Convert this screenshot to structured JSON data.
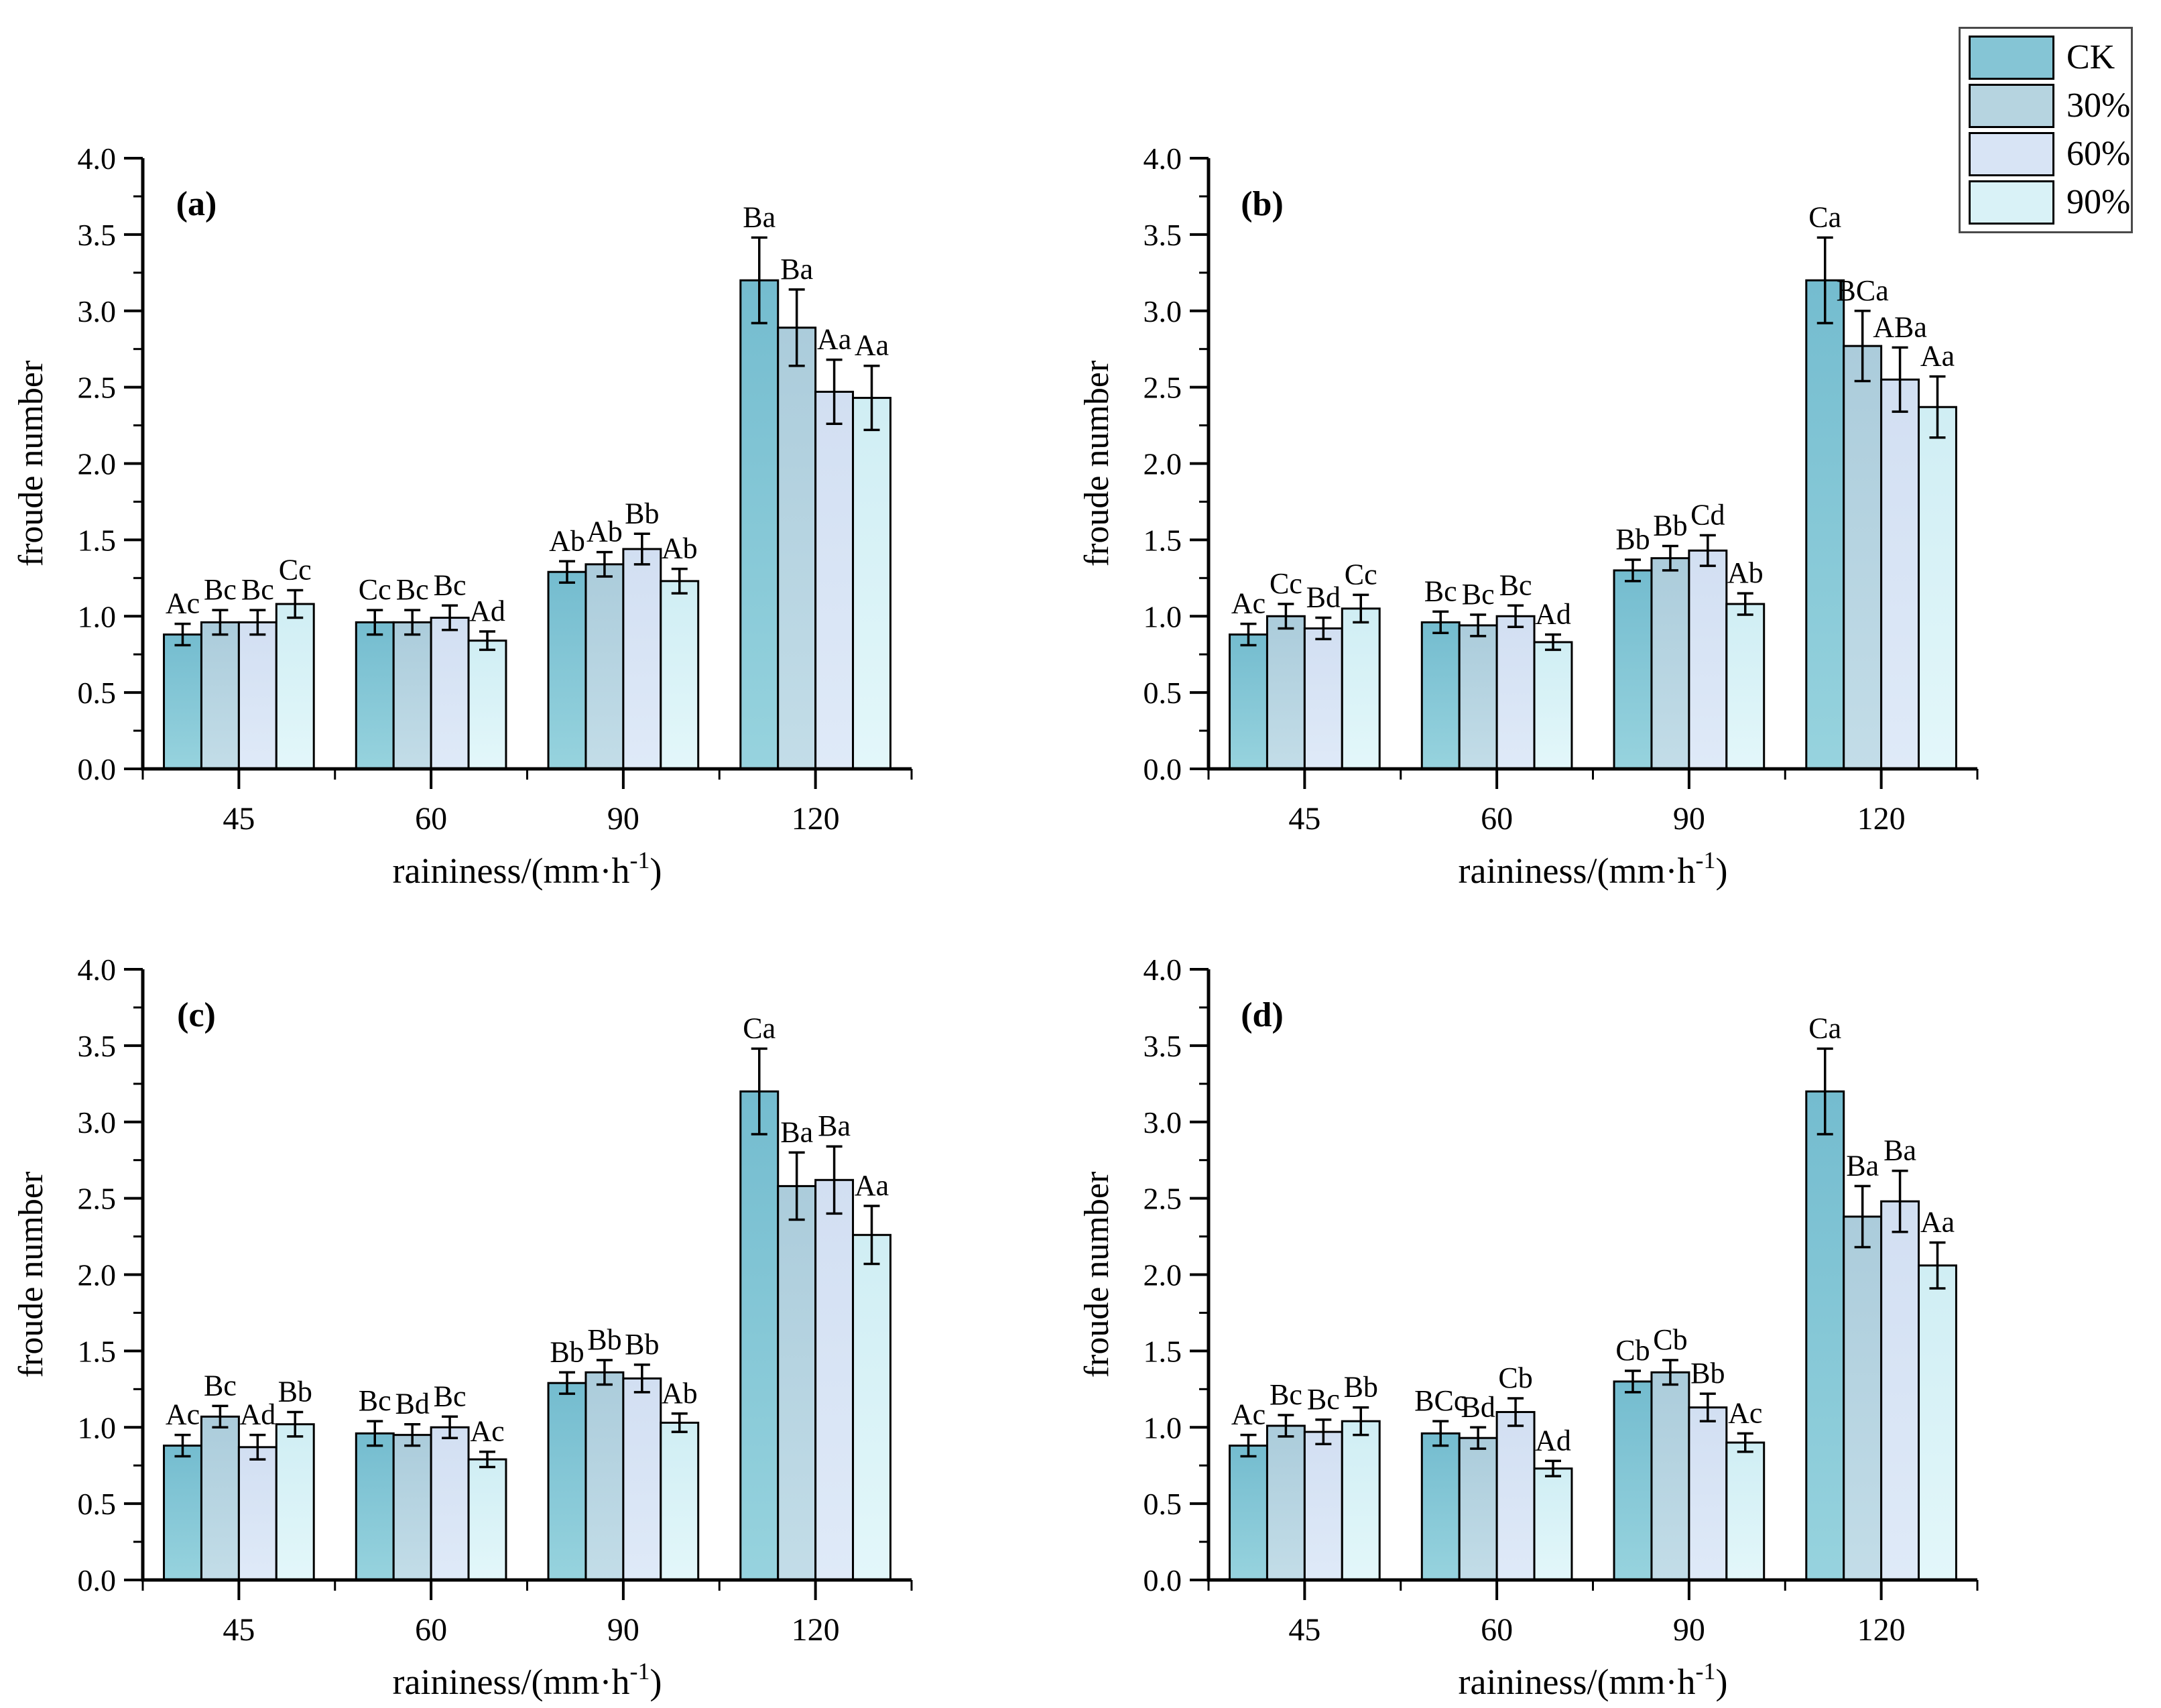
{
  "figure": {
    "background": "#ffffff"
  },
  "legend": {
    "items": [
      {
        "label": "CK",
        "color": "#85c5d5"
      },
      {
        "label": "30%",
        "color": "#b6d4e0"
      },
      {
        "label": "60%",
        "color": "#d8e4f5"
      },
      {
        "label": "90%",
        "color": "#d9f2f7"
      }
    ]
  },
  "colors": {
    "series_gradients": [
      {
        "name": "CK",
        "top": "#74bccf",
        "bottom": "#97d3de"
      },
      {
        "name": "30%",
        "top": "#abccdb",
        "bottom": "#c3dde8"
      },
      {
        "name": "60%",
        "top": "#d2dff2",
        "bottom": "#dfeaf8"
      },
      {
        "name": "90%",
        "top": "#d0eef4",
        "bottom": "#e3f7fa"
      }
    ],
    "bar_stroke": "#000000",
    "axis": "#000000",
    "text": "#000000"
  },
  "axes": {
    "ylabel": "froude number",
    "xlabel_full": "raininess/(mm·h⁻¹)",
    "xlabel_pre": "raininess/(mm·h",
    "xlabel_sup": "-1",
    "xlabel_post": ")",
    "ylim": [
      0,
      4
    ],
    "ytick_major": 0.5,
    "ytick_minor": 0.25,
    "xticks": [
      "45",
      "60",
      "90",
      "120"
    ]
  },
  "chart_data": [
    {
      "type": "bar",
      "panel_label": "(a)",
      "categories": [
        "45",
        "60",
        "90",
        "120"
      ],
      "series": [
        {
          "name": "CK",
          "values": [
            0.88,
            0.96,
            1.29,
            3.2
          ],
          "errors": [
            0.07,
            0.08,
            0.07,
            0.28
          ],
          "letters": [
            "Ac",
            "Cc",
            "Ab",
            "Ba"
          ]
        },
        {
          "name": "30%",
          "values": [
            0.96,
            0.96,
            1.34,
            2.89
          ],
          "errors": [
            0.08,
            0.08,
            0.08,
            0.25
          ],
          "letters": [
            "Bc",
            "Bc",
            "Ab",
            "Ba"
          ]
        },
        {
          "name": "60%",
          "values": [
            0.96,
            0.99,
            1.44,
            2.47
          ],
          "errors": [
            0.08,
            0.08,
            0.1,
            0.21
          ],
          "letters": [
            "Bc",
            "Bc",
            "Bb",
            "Aa"
          ]
        },
        {
          "name": "90%",
          "values": [
            1.08,
            0.84,
            1.23,
            2.43
          ],
          "errors": [
            0.09,
            0.06,
            0.08,
            0.21
          ],
          "letters": [
            "Cc",
            "Ad",
            "Ab",
            "Aa"
          ]
        }
      ],
      "xlabel": "raininess/(mm·h⁻¹)",
      "ylabel": "froude number",
      "ylim": [
        0,
        4
      ]
    },
    {
      "type": "bar",
      "panel_label": "(b)",
      "categories": [
        "45",
        "60",
        "90",
        "120"
      ],
      "series": [
        {
          "name": "CK",
          "values": [
            0.88,
            0.96,
            1.3,
            3.2
          ],
          "errors": [
            0.07,
            0.07,
            0.07,
            0.28
          ],
          "letters": [
            "Ac",
            "Bc",
            "Bb",
            "Ca"
          ]
        },
        {
          "name": "30%",
          "values": [
            1.0,
            0.94,
            1.38,
            2.77
          ],
          "errors": [
            0.08,
            0.07,
            0.08,
            0.23
          ],
          "letters": [
            "Cc",
            "Bc",
            "Bb",
            "BCa"
          ]
        },
        {
          "name": "60%",
          "values": [
            0.92,
            1.0,
            1.43,
            2.55
          ],
          "errors": [
            0.07,
            0.07,
            0.1,
            0.21
          ],
          "letters": [
            "Bd",
            "Bc",
            "Cd",
            "ABa"
          ]
        },
        {
          "name": "90%",
          "values": [
            1.05,
            0.83,
            1.08,
            2.37
          ],
          "errors": [
            0.09,
            0.05,
            0.07,
            0.2
          ],
          "letters": [
            "Cc",
            "Ad",
            "Ab",
            "Aa"
          ]
        }
      ],
      "xlabel": "raininess/(mm·h⁻¹)",
      "ylabel": "froude number",
      "ylim": [
        0,
        4
      ]
    },
    {
      "type": "bar",
      "panel_label": "(c)",
      "categories": [
        "45",
        "60",
        "90",
        "120"
      ],
      "series": [
        {
          "name": "CK",
          "values": [
            0.88,
            0.96,
            1.29,
            3.2
          ],
          "errors": [
            0.07,
            0.08,
            0.07,
            0.28
          ],
          "letters": [
            "Ac",
            "Bc",
            "Bb",
            "Ca"
          ]
        },
        {
          "name": "30%",
          "values": [
            1.07,
            0.95,
            1.36,
            2.58
          ],
          "errors": [
            0.07,
            0.07,
            0.08,
            0.22
          ],
          "letters": [
            "Bc",
            "Bd",
            "Bb",
            "Ba"
          ]
        },
        {
          "name": "60%",
          "values": [
            0.87,
            1.0,
            1.32,
            2.62
          ],
          "errors": [
            0.08,
            0.07,
            0.09,
            0.22
          ],
          "letters": [
            "Ad",
            "Bc",
            "Bb",
            "Ba"
          ]
        },
        {
          "name": "90%",
          "values": [
            1.02,
            0.79,
            1.03,
            2.26
          ],
          "errors": [
            0.08,
            0.05,
            0.06,
            0.19
          ],
          "letters": [
            "Bb",
            "Ac",
            "Ab",
            "Aa"
          ]
        }
      ],
      "xlabel": "raininess/(mm·h⁻¹)",
      "ylabel": "froude number",
      "ylim": [
        0,
        4
      ]
    },
    {
      "type": "bar",
      "panel_label": "(d)",
      "categories": [
        "45",
        "60",
        "90",
        "120"
      ],
      "series": [
        {
          "name": "CK",
          "values": [
            0.88,
            0.96,
            1.3,
            3.2
          ],
          "errors": [
            0.07,
            0.08,
            0.07,
            0.28
          ],
          "letters": [
            "Ac",
            "BCc",
            "Cb",
            "Ca"
          ]
        },
        {
          "name": "30%",
          "values": [
            1.01,
            0.93,
            1.36,
            2.38
          ],
          "errors": [
            0.07,
            0.07,
            0.08,
            0.2
          ],
          "letters": [
            "Bc",
            "Bd",
            "Cb",
            "Ba"
          ]
        },
        {
          "name": "60%",
          "values": [
            0.97,
            1.1,
            1.13,
            2.48
          ],
          "errors": [
            0.08,
            0.09,
            0.09,
            0.2
          ],
          "letters": [
            "Bc",
            "Cb",
            "Bb",
            "Ba"
          ]
        },
        {
          "name": "90%",
          "values": [
            1.04,
            0.73,
            0.9,
            2.06
          ],
          "errors": [
            0.09,
            0.05,
            0.06,
            0.15
          ],
          "letters": [
            "Bb",
            "Ad",
            "Ac",
            "Aa"
          ]
        }
      ],
      "xlabel": "raininess/(mm·h⁻¹)",
      "ylabel": "froude number",
      "ylim": [
        0,
        4
      ]
    }
  ]
}
